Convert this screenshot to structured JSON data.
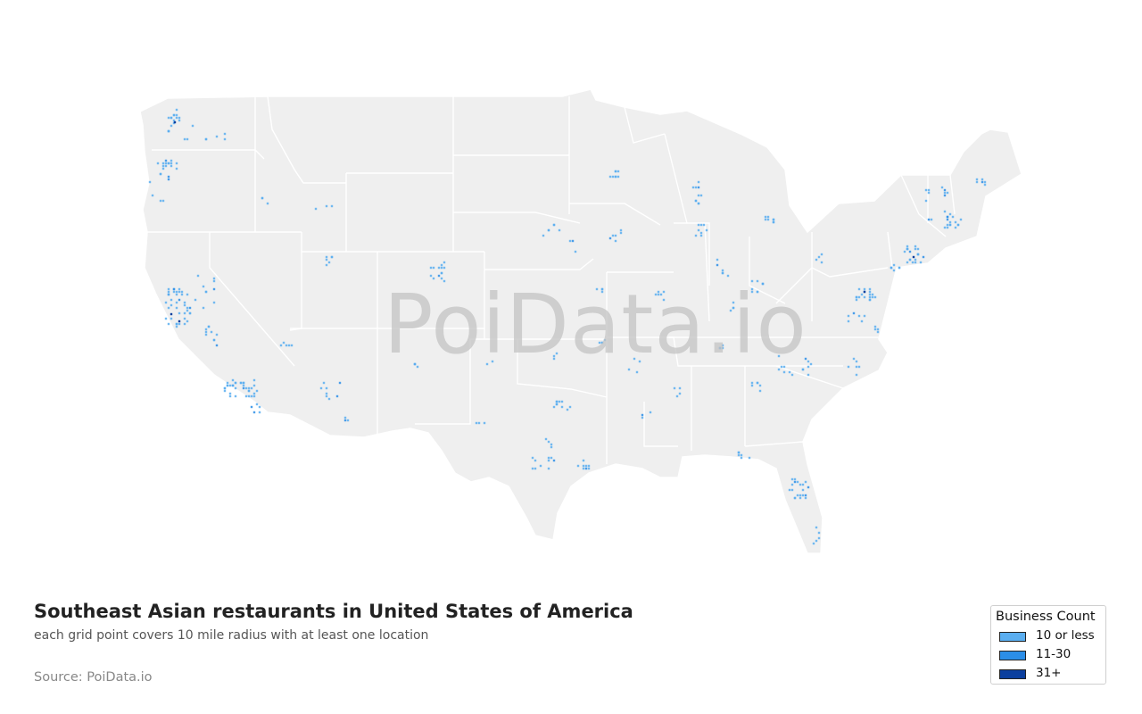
{
  "map": {
    "title": "Southeast Asian restaurants in United States of America",
    "subtitle": "each grid point covers 10 mile radius with at least one location",
    "source": "Source: PoiData.io",
    "watermark": "PoiData.io",
    "colors": {
      "land": "#efefef",
      "border": "#ffffff",
      "low": "#5aaef0",
      "mid": "#2b8ee8",
      "high": "#0b3f9e"
    }
  },
  "legend": {
    "title": "Business Count",
    "items": [
      {
        "label": "10 or less",
        "color": "#5aaef0"
      },
      {
        "label": "11-30",
        "color": "#2b8ee8"
      },
      {
        "label": "31+",
        "color": "#0b3f9e"
      }
    ]
  }
}
